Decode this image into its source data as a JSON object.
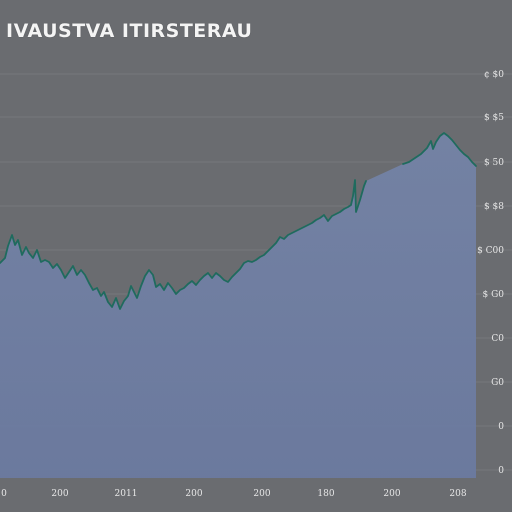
{
  "chart_data": {
    "type": "area",
    "title": "IVAUSTVA ITIRSTERAU",
    "xlabel": "",
    "ylabel": "",
    "grid": true,
    "x_tick_labels": [
      "0",
      "200",
      "2011",
      "200",
      "200",
      "180",
      "200",
      "208"
    ],
    "y_tick_labels": [
      "¢ $0",
      "$ $5",
      "$ 50",
      "$ $8",
      "$ C00",
      "$ G0",
      "C0",
      "G0",
      "0",
      "0"
    ],
    "series": [
      {
        "values": [
          [
            0,
            263
          ],
          [
            5,
            258
          ],
          [
            8,
            246
          ],
          [
            12,
            235
          ],
          [
            15,
            245
          ],
          [
            18,
            240
          ],
          [
            22,
            255
          ],
          [
            26,
            247
          ],
          [
            29,
            253
          ],
          [
            33,
            258
          ],
          [
            37,
            250
          ],
          [
            41,
            262
          ],
          [
            45,
            260
          ],
          [
            49,
            262
          ],
          [
            53,
            268
          ],
          [
            57,
            264
          ],
          [
            61,
            270
          ],
          [
            65,
            278
          ],
          [
            69,
            272
          ],
          [
            73,
            266
          ],
          [
            77,
            275
          ],
          [
            81,
            270
          ],
          [
            85,
            275
          ],
          [
            89,
            283
          ],
          [
            93,
            290
          ],
          [
            97,
            288
          ],
          [
            101,
            296
          ],
          [
            104,
            292
          ],
          [
            108,
            302
          ],
          [
            112,
            307
          ],
          [
            116,
            298
          ],
          [
            120,
            309
          ],
          [
            124,
            301
          ],
          [
            128,
            296
          ],
          [
            131,
            286
          ],
          [
            134,
            292
          ],
          [
            137,
            298
          ],
          [
            141,
            286
          ],
          [
            145,
            276
          ],
          [
            149,
            270
          ],
          [
            153,
            275
          ],
          [
            156,
            287
          ],
          [
            160,
            284
          ],
          [
            164,
            290
          ],
          [
            168,
            283
          ],
          [
            172,
            288
          ],
          [
            176,
            294
          ],
          [
            180,
            290
          ],
          [
            184,
            288
          ],
          [
            188,
            284
          ],
          [
            192,
            281
          ],
          [
            196,
            285
          ],
          [
            200,
            280
          ],
          [
            204,
            276
          ],
          [
            208,
            273
          ],
          [
            212,
            278
          ],
          [
            216,
            273
          ],
          [
            220,
            276
          ],
          [
            224,
            280
          ],
          [
            228,
            282
          ],
          [
            232,
            277
          ],
          [
            236,
            273
          ],
          [
            240,
            269
          ],
          [
            244,
            263
          ],
          [
            248,
            261
          ],
          [
            252,
            262
          ],
          [
            256,
            260
          ],
          [
            260,
            257
          ],
          [
            264,
            255
          ],
          [
            268,
            251
          ],
          [
            272,
            247
          ],
          [
            276,
            243
          ],
          [
            280,
            237
          ],
          [
            284,
            239
          ],
          [
            288,
            235
          ],
          [
            292,
            233
          ],
          [
            296,
            231
          ],
          [
            300,
            229
          ],
          [
            304,
            227
          ],
          [
            308,
            225
          ],
          [
            312,
            223
          ],
          [
            316,
            220
          ],
          [
            320,
            218
          ],
          [
            324,
            215
          ],
          [
            328,
            221
          ],
          [
            332,
            216
          ],
          [
            336,
            214
          ],
          [
            340,
            212
          ],
          [
            344,
            209
          ],
          [
            348,
            207
          ],
          [
            351,
            205
          ],
          [
            353,
            196
          ],
          [
            355,
            180
          ],
          [
            356,
            212
          ],
          [
            358,
            206
          ],
          [
            360,
            200
          ],
          [
            362,
            193
          ],
          [
            364,
            186
          ],
          [
            366,
            181
          ],
          [
            403,
            164
          ],
          [
            409,
            162
          ],
          [
            415,
            158
          ],
          [
            421,
            154
          ],
          [
            427,
            148
          ],
          [
            431,
            141
          ],
          [
            433,
            149
          ],
          [
            436,
            142
          ],
          [
            440,
            136
          ],
          [
            444,
            133
          ],
          [
            448,
            136
          ],
          [
            452,
            140
          ],
          [
            456,
            145
          ],
          [
            460,
            150
          ],
          [
            464,
            154
          ],
          [
            468,
            157
          ],
          [
            472,
            162
          ],
          [
            476,
            166
          ]
        ]
      }
    ]
  },
  "colors": {
    "background_top": "#6b6d70",
    "background_bottom": "#6a7898",
    "area_fill": "#7686ac",
    "line": "#1f6b5e",
    "grid": "#7e8084"
  }
}
